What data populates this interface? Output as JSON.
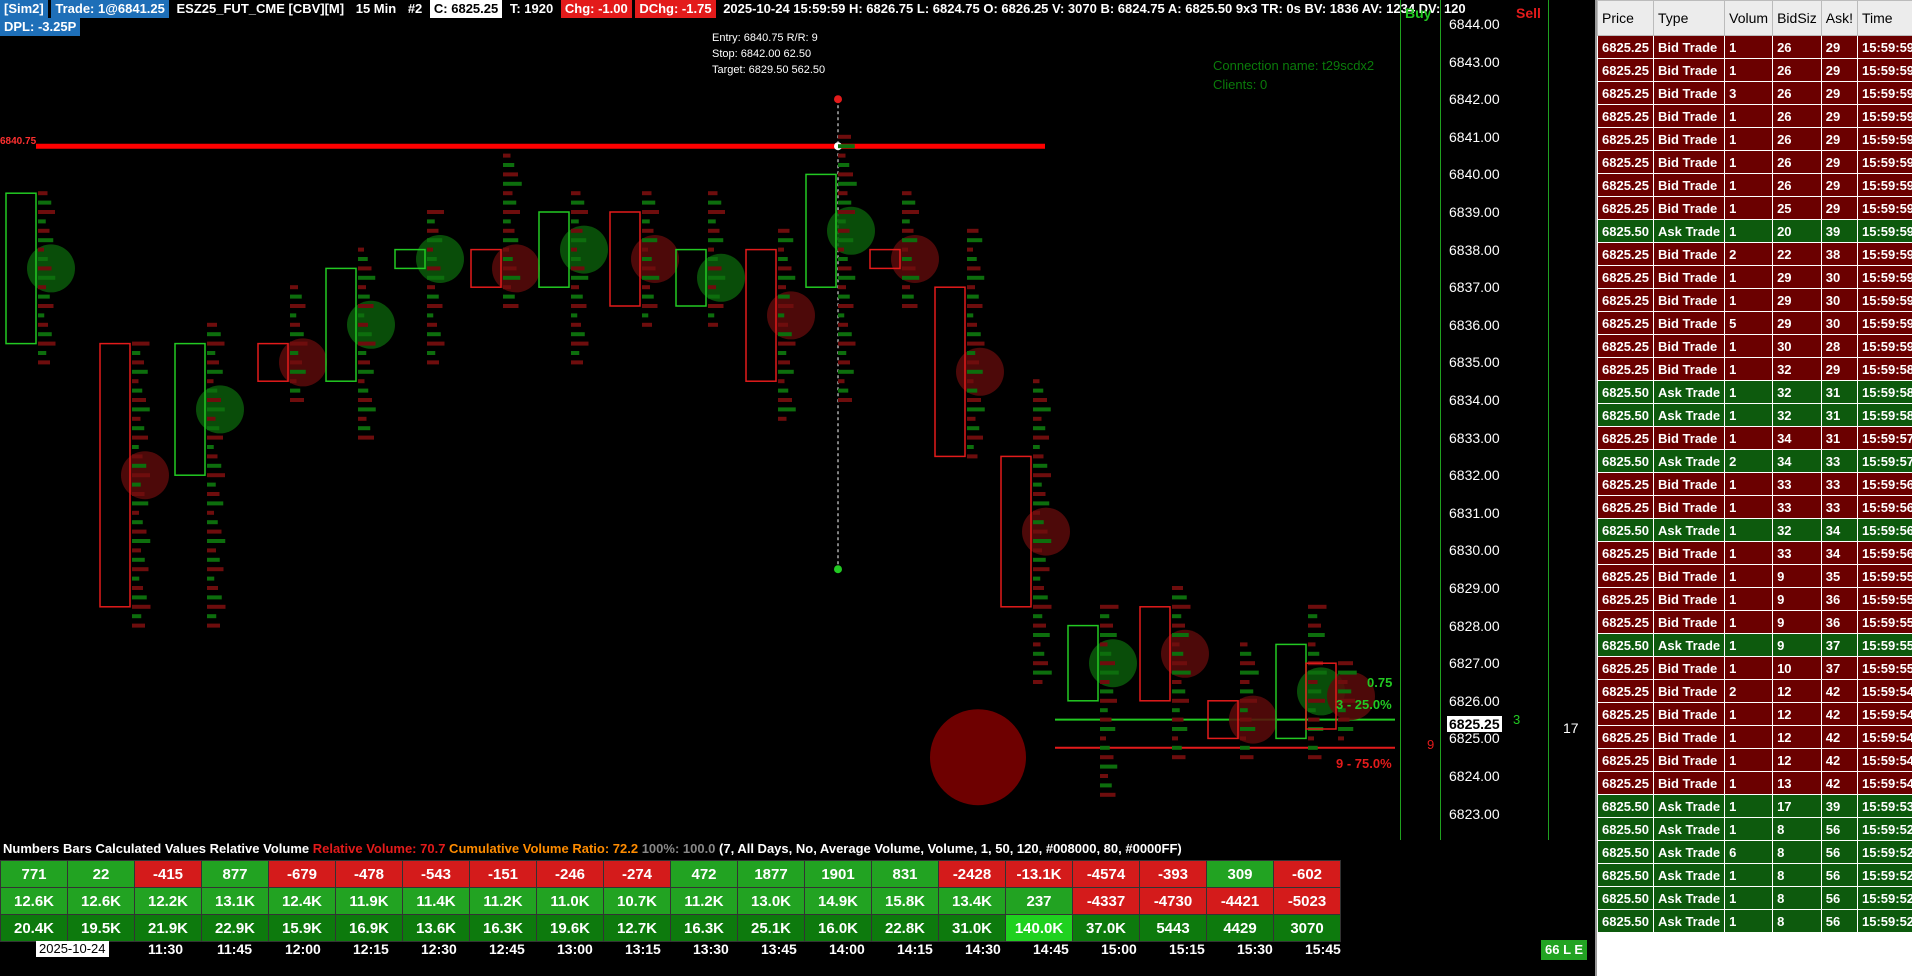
{
  "header": {
    "account_tag": "[Sim2]",
    "trade_tag": "Trade: 1@6841.25",
    "symbol": "ESZ25_FUT_CME [CBV][M]",
    "interval": "15 Min",
    "chart_num": "#2",
    "close": "C: 6825.25",
    "trades": "T: 1920",
    "chg": "Chg: -1.00",
    "dchg": "DChg: -1.75",
    "rest": "2025-10-24 15:59:59 H: 6826.75 L: 6824.75 O: 6826.25 V: 3070 B: 6824.75 A: 6825.50 9x3 TR: 0s BV: 1836 AV: 1234 DV: 120",
    "dpl": "DPL: -3.25P"
  },
  "trade_info": {
    "entry": "Entry: 6840.75  R/R: 9",
    "stop": "Stop: 6842.00  62.50",
    "target": "Target: 6829.50  562.50"
  },
  "connection": {
    "name_line": "Connection name: t29scdx2",
    "clients_line": "Clients: 0"
  },
  "entry_line_label": "6840.75",
  "price_axis": {
    "labels": [
      "6844.00",
      "6843.00",
      "6842.00",
      "6841.00",
      "6840.00",
      "6839.00",
      "6838.00",
      "6837.00",
      "6836.00",
      "6835.00",
      "6834.00",
      "6833.00",
      "6832.00",
      "6831.00",
      "6830.00",
      "6829.00",
      "6828.00",
      "6827.00",
      "6826.00",
      "6825.00",
      "6824.00",
      "6823.00"
    ],
    "current_price": "6825.25"
  },
  "dom": {
    "buy_label": "Buy",
    "sell_label": "Sell",
    "buy_value": "3",
    "sell_value": "9",
    "right_value": "17"
  },
  "target_labels": {
    "top": "0.75",
    "mid": "3 - 25.0%",
    "bottom": "9 - 75.0%"
  },
  "values_title": {
    "part1": "Numbers Bars Calculated Values  Relative Volume ",
    "rel_vol": "Relative Volume: 70.7",
    "cum_ratio": " Cumulative Volume Ratio: 72.2",
    "pct": " 100%: 100.0",
    "params": " (7, All Days, No, Average Volume, Volume, 1, 50, 120, #008000, 80, #0000FF)"
  },
  "values_rows": [
    [
      [
        "771",
        "cg"
      ],
      [
        "22",
        "cg"
      ],
      [
        "-415",
        "cr"
      ],
      [
        "877",
        "cg"
      ],
      [
        "-679",
        "cr"
      ],
      [
        "-478",
        "cr"
      ],
      [
        "-543",
        "cr"
      ],
      [
        "-151",
        "cr"
      ],
      [
        "-246",
        "cr"
      ],
      [
        "-274",
        "cr"
      ],
      [
        "472",
        "cg"
      ],
      [
        "1877",
        "cg"
      ],
      [
        "1901",
        "cg"
      ],
      [
        "831",
        "cg"
      ],
      [
        "-2428",
        "cr"
      ],
      [
        "-13.1K",
        "cr"
      ],
      [
        "-4574",
        "cr"
      ],
      [
        "-393",
        "cr"
      ],
      [
        "309",
        "cg"
      ],
      [
        "-602",
        "cr"
      ]
    ],
    [
      [
        "12.6K",
        "cg"
      ],
      [
        "12.6K",
        "cg"
      ],
      [
        "12.2K",
        "cg"
      ],
      [
        "13.1K",
        "cg"
      ],
      [
        "12.4K",
        "cg"
      ],
      [
        "11.9K",
        "cg"
      ],
      [
        "11.4K",
        "cg"
      ],
      [
        "11.2K",
        "cg"
      ],
      [
        "11.0K",
        "cg"
      ],
      [
        "10.7K",
        "cg"
      ],
      [
        "11.2K",
        "cg"
      ],
      [
        "13.0K",
        "cg"
      ],
      [
        "14.9K",
        "cg"
      ],
      [
        "15.8K",
        "cg"
      ],
      [
        "13.4K",
        "cg"
      ],
      [
        "237",
        "cg"
      ],
      [
        "-4337",
        "cr"
      ],
      [
        "-4730",
        "cr"
      ],
      [
        "-4421",
        "cr"
      ],
      [
        "-5023",
        "cr"
      ]
    ],
    [
      [
        "20.4K",
        "cdg"
      ],
      [
        "19.5K",
        "cdg"
      ],
      [
        "21.9K",
        "cdg"
      ],
      [
        "22.9K",
        "cdg"
      ],
      [
        "15.9K",
        "cdg"
      ],
      [
        "16.9K",
        "cdg"
      ],
      [
        "13.6K",
        "cdg"
      ],
      [
        "16.3K",
        "cdg"
      ],
      [
        "19.6K",
        "cdg"
      ],
      [
        "12.7K",
        "cdg"
      ],
      [
        "16.3K",
        "cdg"
      ],
      [
        "25.1K",
        "cdg"
      ],
      [
        "16.0K",
        "cdg"
      ],
      [
        "22.8K",
        "cdg"
      ],
      [
        "31.0K",
        "cdg"
      ],
      [
        "140.0K",
        "cbg"
      ],
      [
        "37.0K",
        "cdg"
      ],
      [
        "5443",
        "cdg"
      ],
      [
        "4429",
        "cdg"
      ],
      [
        "3070",
        "cdg"
      ]
    ]
  ],
  "time_axis": {
    "date": "2025-10-24",
    "times": [
      "11:30",
      "11:45",
      "12:00",
      "12:15",
      "12:30",
      "12:45",
      "13:00",
      "13:15",
      "13:30",
      "13:45",
      "14:00",
      "14:15",
      "14:30",
      "14:45",
      "15:00",
      "15:15",
      "15:30",
      "15:45"
    ]
  },
  "le_badge": "66 L E",
  "tns": {
    "headers": [
      "Price",
      "Type",
      "Volum",
      "BidSiz",
      "Ask!",
      "Time"
    ],
    "rows": [
      [
        "6825.25",
        "Bid Trade",
        "1",
        "26",
        "29",
        "15:59:59",
        "bid"
      ],
      [
        "6825.25",
        "Bid Trade",
        "1",
        "26",
        "29",
        "15:59:59",
        "bid"
      ],
      [
        "6825.25",
        "Bid Trade",
        "3",
        "26",
        "29",
        "15:59:59",
        "bid"
      ],
      [
        "6825.25",
        "Bid Trade",
        "1",
        "26",
        "29",
        "15:59:59",
        "bid"
      ],
      [
        "6825.25",
        "Bid Trade",
        "1",
        "26",
        "29",
        "15:59:59",
        "bid"
      ],
      [
        "6825.25",
        "Bid Trade",
        "1",
        "26",
        "29",
        "15:59:59",
        "bid"
      ],
      [
        "6825.25",
        "Bid Trade",
        "1",
        "26",
        "29",
        "15:59:59",
        "bid"
      ],
      [
        "6825.25",
        "Bid Trade",
        "1",
        "25",
        "29",
        "15:59:59",
        "bid"
      ],
      [
        "6825.50",
        "Ask Trade",
        "1",
        "20",
        "39",
        "15:59:59",
        "ask"
      ],
      [
        "6825.25",
        "Bid Trade",
        "2",
        "22",
        "38",
        "15:59:59",
        "bid"
      ],
      [
        "6825.25",
        "Bid Trade",
        "1",
        "29",
        "30",
        "15:59:59",
        "bid"
      ],
      [
        "6825.25",
        "Bid Trade",
        "1",
        "29",
        "30",
        "15:59:59",
        "bid"
      ],
      [
        "6825.25",
        "Bid Trade",
        "5",
        "29",
        "30",
        "15:59:59",
        "bid"
      ],
      [
        "6825.25",
        "Bid Trade",
        "1",
        "30",
        "28",
        "15:59:59",
        "bid"
      ],
      [
        "6825.25",
        "Bid Trade",
        "1",
        "32",
        "29",
        "15:59:58",
        "bid"
      ],
      [
        "6825.50",
        "Ask Trade",
        "1",
        "32",
        "31",
        "15:59:58",
        "ask"
      ],
      [
        "6825.50",
        "Ask Trade",
        "1",
        "32",
        "31",
        "15:59:58",
        "ask"
      ],
      [
        "6825.25",
        "Bid Trade",
        "1",
        "34",
        "31",
        "15:59:57",
        "bid"
      ],
      [
        "6825.50",
        "Ask Trade",
        "2",
        "34",
        "33",
        "15:59:57",
        "ask"
      ],
      [
        "6825.25",
        "Bid Trade",
        "1",
        "33",
        "33",
        "15:59:56",
        "bid"
      ],
      [
        "6825.25",
        "Bid Trade",
        "1",
        "33",
        "33",
        "15:59:56",
        "bid"
      ],
      [
        "6825.50",
        "Ask Trade",
        "1",
        "32",
        "34",
        "15:59:56",
        "ask"
      ],
      [
        "6825.25",
        "Bid Trade",
        "1",
        "33",
        "34",
        "15:59:56",
        "bid"
      ],
      [
        "6825.25",
        "Bid Trade",
        "1",
        "9",
        "35",
        "15:59:55",
        "bid"
      ],
      [
        "6825.25",
        "Bid Trade",
        "1",
        "9",
        "36",
        "15:59:55",
        "bid"
      ],
      [
        "6825.25",
        "Bid Trade",
        "1",
        "9",
        "36",
        "15:59:55",
        "bid"
      ],
      [
        "6825.50",
        "Ask Trade",
        "1",
        "9",
        "37",
        "15:59:55",
        "ask"
      ],
      [
        "6825.25",
        "Bid Trade",
        "1",
        "10",
        "37",
        "15:59:55",
        "bid"
      ],
      [
        "6825.25",
        "Bid Trade",
        "2",
        "12",
        "42",
        "15:59:54",
        "bid"
      ],
      [
        "6825.25",
        "Bid Trade",
        "1",
        "12",
        "42",
        "15:59:54",
        "bid"
      ],
      [
        "6825.25",
        "Bid Trade",
        "1",
        "12",
        "42",
        "15:59:54",
        "bid"
      ],
      [
        "6825.25",
        "Bid Trade",
        "1",
        "12",
        "42",
        "15:59:54",
        "bid"
      ],
      [
        "6825.25",
        "Bid Trade",
        "1",
        "13",
        "42",
        "15:59:54",
        "bid"
      ],
      [
        "6825.50",
        "Ask Trade",
        "1",
        "17",
        "39",
        "15:59:53",
        "ask"
      ],
      [
        "6825.50",
        "Ask Trade",
        "1",
        "8",
        "56",
        "15:59:52",
        "ask"
      ],
      [
        "6825.50",
        "Ask Trade",
        "6",
        "8",
        "56",
        "15:59:52",
        "ask"
      ],
      [
        "6825.50",
        "Ask Trade",
        "1",
        "8",
        "56",
        "15:59:52",
        "ask"
      ],
      [
        "6825.50",
        "Ask Trade",
        "1",
        "8",
        "56",
        "15:59:52",
        "ask"
      ],
      [
        "6825.50",
        "Ask Trade",
        "1",
        "8",
        "56",
        "15:59:52",
        "ask"
      ]
    ]
  },
  "colors": {
    "buy_green": "#22c922",
    "sell_red": "#e31b1b",
    "bid_row": "#6b0000",
    "ask_row": "#0d5a0d",
    "entry_line": "#ff0000"
  }
}
